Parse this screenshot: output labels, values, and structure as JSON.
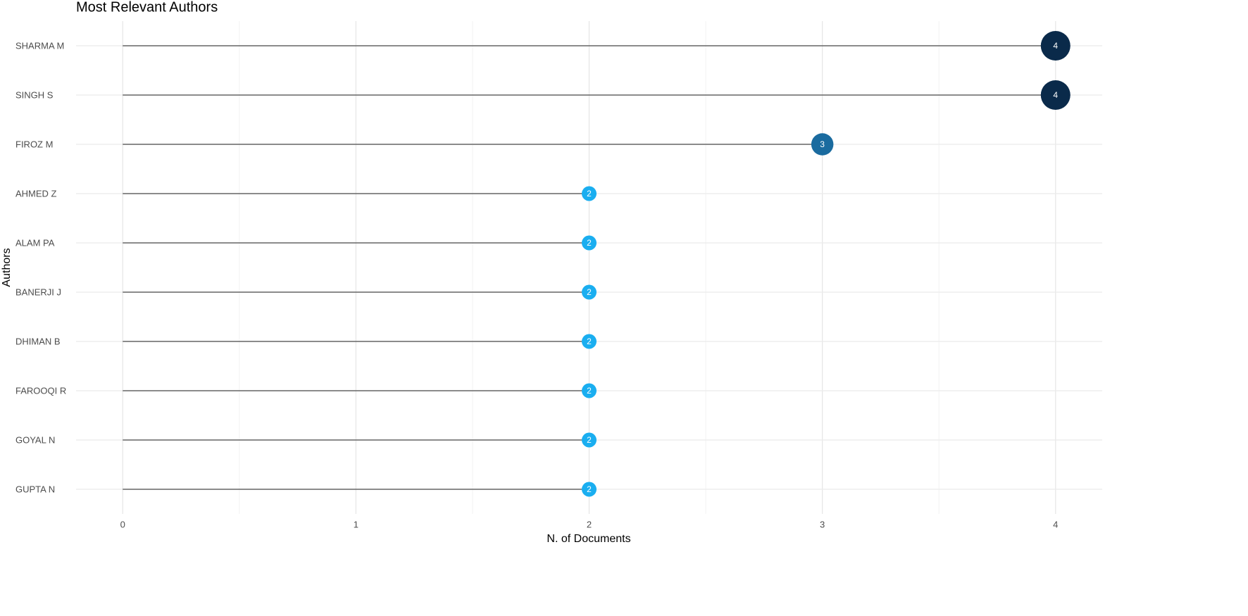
{
  "chart_data": {
    "type": "lollipop",
    "title": "Most Relevant Authors",
    "x_label": "N. of Documents",
    "y_label": "Authors",
    "categories": [
      "SHARMA M",
      "SINGH S",
      "FIROZ M",
      "AHMED Z",
      "ALAM PA",
      "BANERJI J",
      "DHIMAN B",
      "FAROOQI R",
      "GOYAL N",
      "GUPTA N"
    ],
    "values": [
      4,
      4,
      3,
      2,
      2,
      2,
      2,
      2,
      2,
      2
    ],
    "colors": [
      "#0a2a4a",
      "#0a2a4a",
      "#1a6b9f",
      "#1aaef0",
      "#1aaef0",
      "#1aaef0",
      "#1aaef0",
      "#1aaef0",
      "#1aaef0",
      "#1aaef0"
    ],
    "stem_color": "#666666",
    "xlim": [
      -0.2,
      4.2
    ],
    "xticks": [
      0,
      1,
      2,
      3,
      4
    ],
    "grid": true
  }
}
